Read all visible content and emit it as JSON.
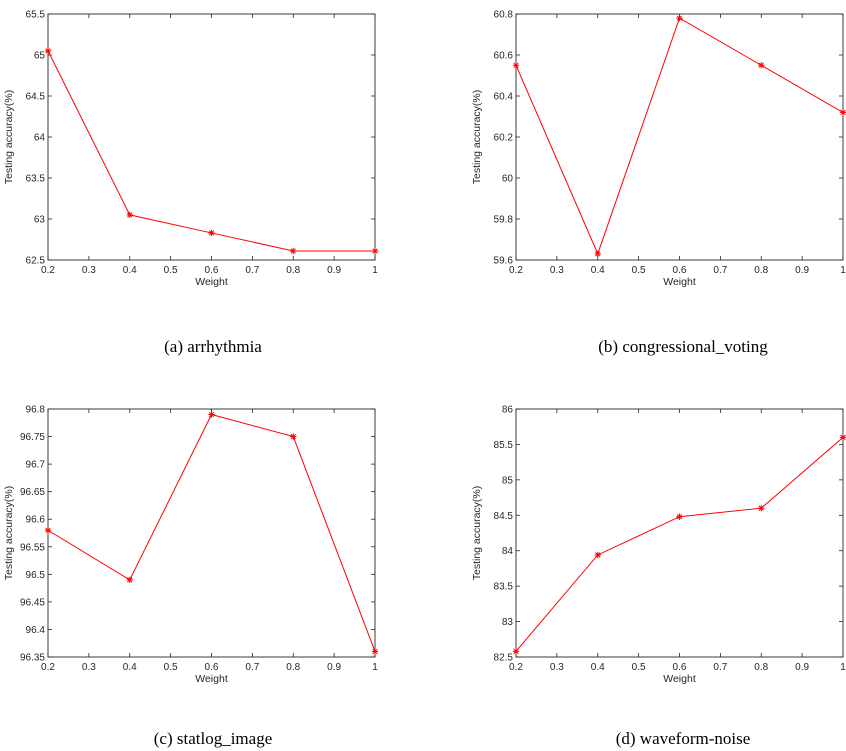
{
  "colors": {
    "series": "#ff0000",
    "axis": "#262626"
  },
  "chart_data": [
    {
      "type": "line",
      "caption": "(a) arrhythmia",
      "xlabel": "Weight",
      "ylabel": "Testing accuracy(%)",
      "xlim": [
        0.2,
        1
      ],
      "ylim": [
        62.5,
        65.5
      ],
      "xticks": [
        "0.2",
        "0.3",
        "0.4",
        "0.5",
        "0.6",
        "0.7",
        "0.8",
        "0.9",
        "1"
      ],
      "yticks": [
        "62.5",
        "63",
        "63.5",
        "64",
        "64.5",
        "65",
        "65.5"
      ],
      "x": [
        0.2,
        0.4,
        0.6,
        0.8,
        1.0
      ],
      "y": [
        65.05,
        63.05,
        62.83,
        62.61,
        62.61
      ]
    },
    {
      "type": "line",
      "caption": "(b) congressional_voting",
      "xlabel": "Weight",
      "ylabel": "Testing accuracy(%)",
      "xlim": [
        0.2,
        1
      ],
      "ylim": [
        59.6,
        60.8
      ],
      "xticks": [
        "0.2",
        "0.3",
        "0.4",
        "0.5",
        "0.6",
        "0.7",
        "0.8",
        "0.9",
        "1"
      ],
      "yticks": [
        "59.6",
        "59.8",
        "60",
        "60.2",
        "60.4",
        "60.6",
        "60.8"
      ],
      "x": [
        0.2,
        0.4,
        0.6,
        0.8,
        1.0
      ],
      "y": [
        60.55,
        59.63,
        60.78,
        60.55,
        60.32
      ]
    },
    {
      "type": "line",
      "caption": "(c) statlog_image",
      "xlabel": "Weight",
      "ylabel": "Testing accuracy(%)",
      "xlim": [
        0.2,
        1
      ],
      "ylim": [
        96.35,
        96.8
      ],
      "xticks": [
        "0.2",
        "0.3",
        "0.4",
        "0.5",
        "0.6",
        "0.7",
        "0.8",
        "0.9",
        "1"
      ],
      "yticks": [
        "96.35",
        "96.4",
        "96.45",
        "96.5",
        "96.55",
        "96.6",
        "96.65",
        "96.7",
        "96.75",
        "96.8"
      ],
      "x": [
        0.2,
        0.4,
        0.6,
        0.8,
        1.0
      ],
      "y": [
        96.58,
        96.49,
        96.79,
        96.75,
        96.36
      ]
    },
    {
      "type": "line",
      "caption": "(d) waveform-noise",
      "xlabel": "Weight",
      "ylabel": "Testing accuracy(%)",
      "xlim": [
        0.2,
        1
      ],
      "ylim": [
        82.5,
        86
      ],
      "xticks": [
        "0.2",
        "0.3",
        "0.4",
        "0.5",
        "0.6",
        "0.7",
        "0.8",
        "0.9",
        "1"
      ],
      "yticks": [
        "82.5",
        "83",
        "83.5",
        "84",
        "84.5",
        "85",
        "85.5",
        "86"
      ],
      "x": [
        0.2,
        0.4,
        0.6,
        0.8,
        1.0
      ],
      "y": [
        82.58,
        83.94,
        84.48,
        84.6,
        85.6
      ]
    }
  ]
}
